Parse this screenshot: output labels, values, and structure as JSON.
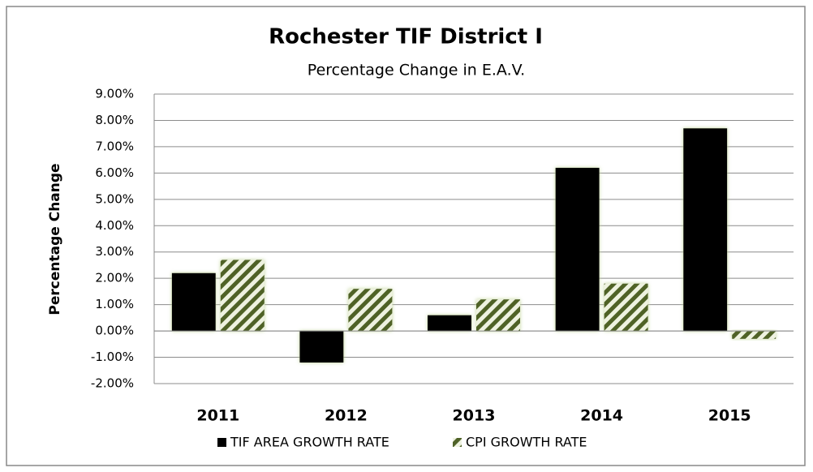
{
  "chart_data": {
    "type": "bar",
    "title": "Rochester TIF District I",
    "subtitle": "Percentage Change in E.A.V.",
    "y_label": "Percentage Change",
    "categories": [
      "2011",
      "2012",
      "2013",
      "2014",
      "2015"
    ],
    "series": [
      {
        "name": "TIF AREA GROWTH RATE",
        "color": "#000000",
        "values": [
          2.2,
          -1.2,
          0.6,
          6.2,
          7.7
        ]
      },
      {
        "name": "CPI GROWTH RATE",
        "color": "#4f6228",
        "values": [
          2.7,
          1.6,
          1.2,
          1.8,
          -0.3
        ]
      }
    ],
    "ylim": [
      -2,
      9
    ],
    "yticks": [
      {
        "value": -2,
        "label": "-2.00%"
      },
      {
        "value": -1,
        "label": "-1.00%"
      },
      {
        "value": 0,
        "label": "0.00%"
      },
      {
        "value": 1,
        "label": "1.00%"
      },
      {
        "value": 2,
        "label": "2.00%"
      },
      {
        "value": 3,
        "label": "3.00%"
      },
      {
        "value": 4,
        "label": "4.00%"
      },
      {
        "value": 5,
        "label": "5.00%"
      },
      {
        "value": 6,
        "label": "6.00%"
      },
      {
        "value": 7,
        "label": "7.00%"
      },
      {
        "value": 8,
        "label": "8.00%"
      },
      {
        "value": 9,
        "label": "9.00%"
      }
    ],
    "grid": true
  }
}
